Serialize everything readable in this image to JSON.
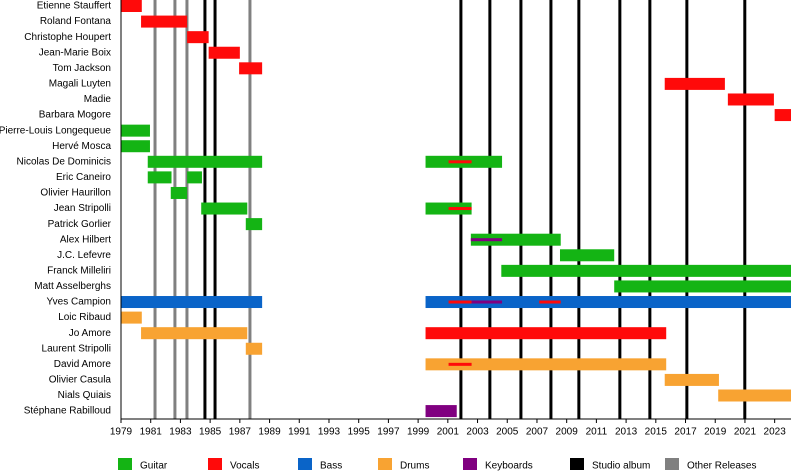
{
  "chart_data": {
    "type": "timeline",
    "xlim": [
      1979,
      2024.1
    ],
    "xticks": [
      1979,
      1981,
      1983,
      1985,
      1987,
      1989,
      1991,
      1993,
      1995,
      1997,
      1999,
      2001,
      2003,
      2005,
      2007,
      2009,
      2011,
      2013,
      2015,
      2017,
      2019,
      2021,
      2023
    ],
    "roles": [
      {
        "name": "Guitar",
        "color": "#14b414"
      },
      {
        "name": "Vocals",
        "color": "#ff0a0a"
      },
      {
        "name": "Bass",
        "color": "#0a64c8"
      },
      {
        "name": "Drums",
        "color": "#f8a332"
      },
      {
        "name": "Keyboards",
        "color": "#800080"
      }
    ],
    "events": [
      {
        "name": "Studio album",
        "color": "#000000",
        "dates": [
          1984.65,
          1985.33,
          2001.88,
          2003.83,
          2005.92,
          2007.94,
          2009.82,
          2012.58,
          2014.6,
          2017.09,
          2020.99
        ]
      },
      {
        "name": "Other Releases",
        "color": "#808080",
        "dates": [
          1981.29,
          1982.63,
          1983.44,
          1987.68
        ]
      }
    ],
    "rows": [
      {
        "name": "Etienne Stauffert",
        "periods": [
          {
            "role": "Vocals",
            "start": 1979,
            "end": 1980.4
          }
        ],
        "secondary": []
      },
      {
        "name": "Roland Fontana",
        "periods": [
          {
            "role": "Vocals",
            "start": 1980.35,
            "end": 1983.45
          }
        ],
        "secondary": []
      },
      {
        "name": "Christophe Houpert",
        "periods": [
          {
            "role": "Vocals",
            "start": 1983.45,
            "end": 1984.9
          }
        ],
        "secondary": []
      },
      {
        "name": "Jean-Marie Boix",
        "periods": [
          {
            "role": "Vocals",
            "start": 1984.9,
            "end": 1987
          }
        ],
        "secondary": []
      },
      {
        "name": "Tom Jackson",
        "periods": [
          {
            "role": "Vocals",
            "start": 1986.95,
            "end": 1988.5
          }
        ],
        "secondary": []
      },
      {
        "name": "Magali Luyten",
        "periods": [
          {
            "role": "Vocals",
            "start": 2015.6,
            "end": 2019.65
          }
        ],
        "secondary": []
      },
      {
        "name": "Madie",
        "periods": [
          {
            "role": "Vocals",
            "start": 2019.85,
            "end": 2022.95
          }
        ],
        "secondary": []
      },
      {
        "name": "Barbara Mogore",
        "periods": [
          {
            "role": "Vocals",
            "start": 2023,
            "end": 2024.1
          }
        ],
        "secondary": []
      },
      {
        "name": "Pierre-Louis Longequeue",
        "periods": [
          {
            "role": "Guitar",
            "start": 1979,
            "end": 1980.95
          }
        ],
        "secondary": []
      },
      {
        "name": "Hervé Mosca",
        "periods": [
          {
            "role": "Guitar",
            "start": 1979,
            "end": 1980.95
          }
        ],
        "secondary": []
      },
      {
        "name": "Nicolas De Dominicis",
        "periods": [
          {
            "role": "Guitar",
            "start": 1980.8,
            "end": 1988.5
          },
          {
            "role": "Guitar",
            "start": 1999.5,
            "end": 2004.65
          }
        ],
        "secondary": [
          {
            "role": "Vocals",
            "start": 2001.05,
            "end": 2002.6
          }
        ]
      },
      {
        "name": "Eric Caneiro",
        "periods": [
          {
            "role": "Guitar",
            "start": 1980.8,
            "end": 1982.4
          },
          {
            "role": "Guitar",
            "start": 1983.45,
            "end": 1984.45
          }
        ],
        "secondary": []
      },
      {
        "name": "Olivier Haurillon",
        "periods": [
          {
            "role": "Guitar",
            "start": 1982.35,
            "end": 1983.45
          }
        ],
        "secondary": []
      },
      {
        "name": "Jean Stripolli",
        "periods": [
          {
            "role": "Guitar",
            "start": 1984.4,
            "end": 1987.5
          },
          {
            "role": "Guitar",
            "start": 1999.5,
            "end": 2002.6
          }
        ],
        "secondary": [
          {
            "role": "Vocals",
            "start": 2001.05,
            "end": 2002.6
          }
        ]
      },
      {
        "name": "Patrick Gorlier",
        "periods": [
          {
            "role": "Guitar",
            "start": 1987.4,
            "end": 1988.5
          }
        ],
        "secondary": []
      },
      {
        "name": "Alex Hilbert",
        "periods": [
          {
            "role": "Guitar",
            "start": 2002.55,
            "end": 2008.6
          }
        ],
        "secondary": [
          {
            "role": "Keyboards",
            "start": 2002.55,
            "end": 2004.65
          }
        ]
      },
      {
        "name": "J.C. Lefevre",
        "periods": [
          {
            "role": "Guitar",
            "start": 2008.55,
            "end": 2012.2
          }
        ],
        "secondary": []
      },
      {
        "name": "Franck Milleliri",
        "periods": [
          {
            "role": "Guitar",
            "start": 2004.6,
            "end": 2024.1
          }
        ],
        "secondary": []
      },
      {
        "name": "Matt Asselberghs",
        "periods": [
          {
            "role": "Guitar",
            "start": 2012.2,
            "end": 2024.1
          }
        ],
        "secondary": []
      },
      {
        "name": "Yves Campion",
        "periods": [
          {
            "role": "Bass",
            "start": 1979,
            "end": 1988.5
          },
          {
            "role": "Bass",
            "start": 1999.5,
            "end": 2024.1
          }
        ],
        "secondary": [
          {
            "role": "Vocals",
            "start": 2001.05,
            "end": 2002.6
          },
          {
            "role": "Keyboards",
            "start": 2002.6,
            "end": 2004.65
          },
          {
            "role": "Vocals",
            "start": 2007.15,
            "end": 2008.6
          }
        ]
      },
      {
        "name": "Loic Ribaud",
        "periods": [
          {
            "role": "Drums",
            "start": 1979,
            "end": 1980.4
          }
        ],
        "secondary": []
      },
      {
        "name": "Jo Amore",
        "periods": [
          {
            "role": "Drums",
            "start": 1980.35,
            "end": 1987.5
          },
          {
            "role": "Vocals",
            "start": 1999.5,
            "end": 2015.7
          }
        ],
        "secondary": []
      },
      {
        "name": "Laurent Stripolli",
        "periods": [
          {
            "role": "Drums",
            "start": 1987.4,
            "end": 1988.5
          }
        ],
        "secondary": []
      },
      {
        "name": "David Amore",
        "periods": [
          {
            "role": "Drums",
            "start": 1999.5,
            "end": 2015.7
          }
        ],
        "secondary": [
          {
            "role": "Vocals",
            "start": 2001.05,
            "end": 2002.6
          }
        ]
      },
      {
        "name": "Olivier Casula",
        "periods": [
          {
            "role": "Drums",
            "start": 2015.6,
            "end": 2019.25
          }
        ],
        "secondary": []
      },
      {
        "name": "Nials Quiais",
        "periods": [
          {
            "role": "Drums",
            "start": 2019.2,
            "end": 2024.1
          }
        ],
        "secondary": []
      },
      {
        "name": "Stéphane Rabilloud",
        "periods": [
          {
            "role": "Keyboards",
            "start": 1999.5,
            "end": 2001.6
          }
        ],
        "secondary": []
      }
    ]
  }
}
